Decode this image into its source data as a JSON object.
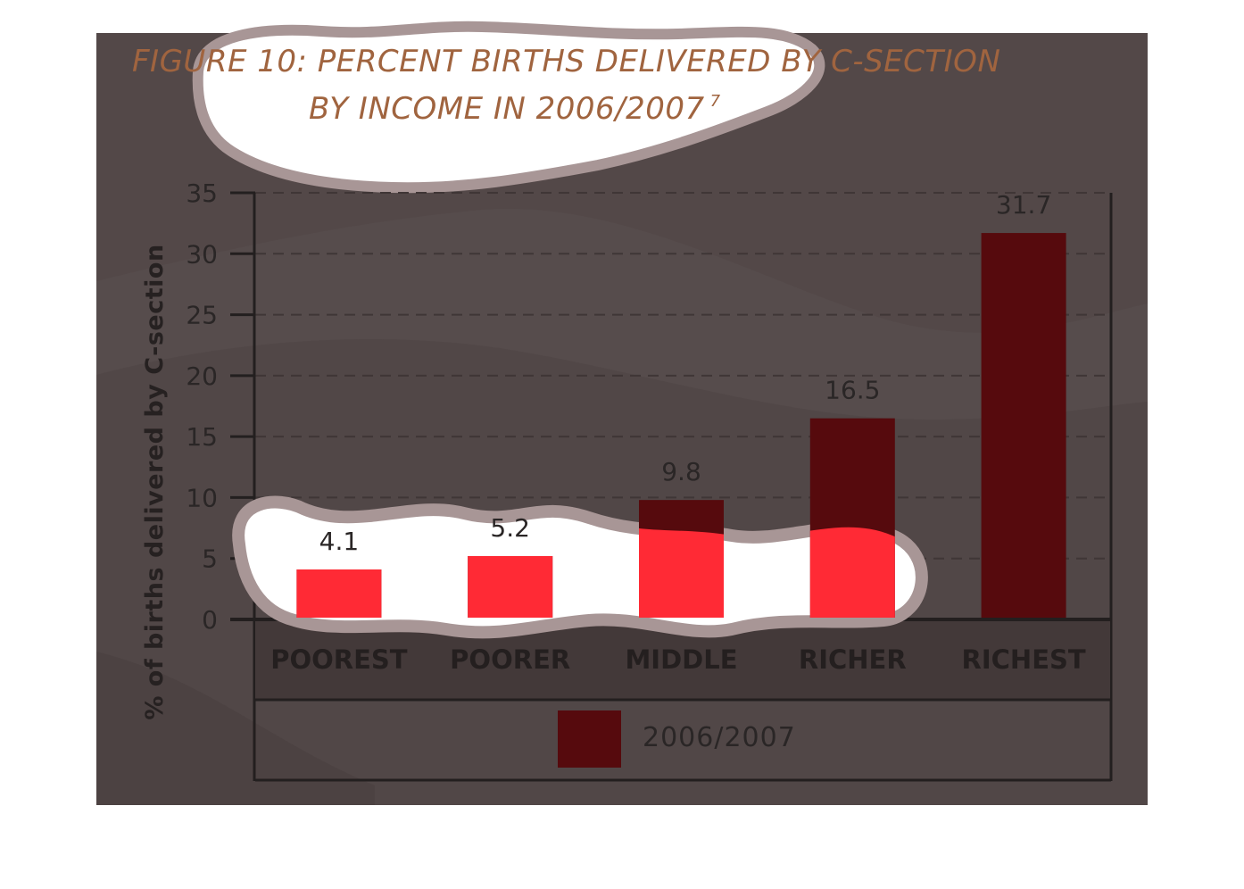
{
  "chart_data": {
    "type": "bar",
    "title_line1": "FIGURE 10: PERCENT BIRTHS DELIVERED BY C-SECTION",
    "title_line2": "BY INCOME IN 2006/2007",
    "title_superscript": "7",
    "xlabel": "",
    "ylabel": "% of births delivered by C-section",
    "ylim": [
      0,
      35
    ],
    "yticks": [
      0,
      5,
      10,
      15,
      20,
      25,
      30,
      35
    ],
    "grid": "horizontal dashed",
    "categories": [
      "POOREST",
      "POORER",
      "MIDDLE",
      "RICHER",
      "RICHEST"
    ],
    "series": [
      {
        "name": "2006/2007",
        "values": [
          4.1,
          5.2,
          9.8,
          16.5,
          31.7
        ],
        "value_labels": [
          "4.1",
          "5.2",
          "9.8",
          "16.5",
          "31.7"
        ]
      }
    ],
    "legend_position": "bottom",
    "colors": {
      "bar": "#560a0d",
      "bar_highlight": "#ff2a35",
      "background": "#534848",
      "title": "#a0643f"
    }
  }
}
